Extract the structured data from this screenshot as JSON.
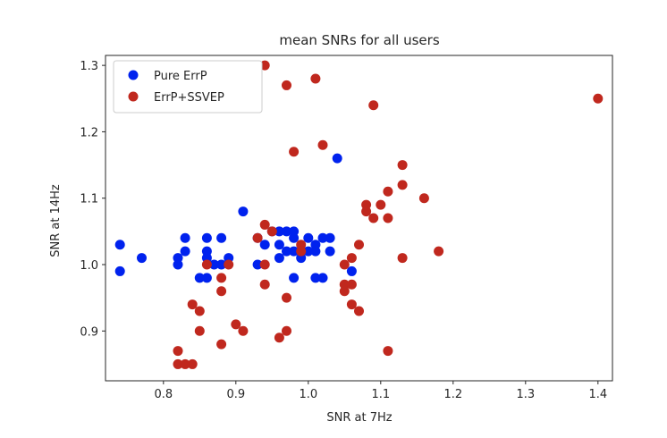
{
  "chart_data": {
    "type": "scatter",
    "title": "mean SNRs for all users",
    "xlabel": "SNR at 7Hz",
    "ylabel": "SNR at 14Hz",
    "xlim": [
      0.72,
      1.42
    ],
    "ylim": [
      0.825,
      1.315
    ],
    "xticks": [
      0.8,
      0.9,
      1.0,
      1.1,
      1.2,
      1.3,
      1.4
    ],
    "xtick_labels": [
      "0.8",
      "0.9",
      "1.0",
      "1.1",
      "1.2",
      "1.3",
      "1.4"
    ],
    "yticks": [
      0.9,
      1.0,
      1.1,
      1.2,
      1.3
    ],
    "ytick_labels": [
      "0.9",
      "1.0",
      "1.1",
      "1.2",
      "1.3"
    ],
    "grid": false,
    "legend_position": "top-left",
    "series": [
      {
        "name": "Pure ErrP",
        "color": "#0022ee",
        "points": [
          [
            0.74,
            1.03
          ],
          [
            0.74,
            0.99
          ],
          [
            0.77,
            1.01
          ],
          [
            0.82,
            1.01
          ],
          [
            0.82,
            1.0
          ],
          [
            0.83,
            1.04
          ],
          [
            0.83,
            1.02
          ],
          [
            0.85,
            0.98
          ],
          [
            0.86,
            1.04
          ],
          [
            0.86,
            1.02
          ],
          [
            0.86,
            1.01
          ],
          [
            0.86,
            0.98
          ],
          [
            0.87,
            1.0
          ],
          [
            0.88,
            1.04
          ],
          [
            0.88,
            1.0
          ],
          [
            0.89,
            1.01
          ],
          [
            0.91,
            1.08
          ],
          [
            0.93,
            1.04
          ],
          [
            0.93,
            1.0
          ],
          [
            0.94,
            1.03
          ],
          [
            0.95,
            1.05
          ],
          [
            0.96,
            1.05
          ],
          [
            0.96,
            1.03
          ],
          [
            0.96,
            1.01
          ],
          [
            0.97,
            1.05
          ],
          [
            0.97,
            1.02
          ],
          [
            0.98,
            1.05
          ],
          [
            0.98,
            1.04
          ],
          [
            0.98,
            1.02
          ],
          [
            0.98,
            0.98
          ],
          [
            0.99,
            1.02
          ],
          [
            0.99,
            1.01
          ],
          [
            1.0,
            1.04
          ],
          [
            1.0,
            1.02
          ],
          [
            1.01,
            1.03
          ],
          [
            1.01,
            1.02
          ],
          [
            1.01,
            0.98
          ],
          [
            1.02,
            1.04
          ],
          [
            1.02,
            0.98
          ],
          [
            1.03,
            1.04
          ],
          [
            1.03,
            1.02
          ],
          [
            1.04,
            1.16
          ],
          [
            1.06,
            0.99
          ]
        ]
      },
      {
        "name": "ErrP+SSVEP",
        "color": "#c0281e",
        "points": [
          [
            0.82,
            0.87
          ],
          [
            0.82,
            0.85
          ],
          [
            0.83,
            0.85
          ],
          [
            0.84,
            0.85
          ],
          [
            0.84,
            0.94
          ],
          [
            0.85,
            0.93
          ],
          [
            0.85,
            0.9
          ],
          [
            0.86,
            1.0
          ],
          [
            0.88,
            0.98
          ],
          [
            0.88,
            0.96
          ],
          [
            0.88,
            0.88
          ],
          [
            0.89,
            1.0
          ],
          [
            0.9,
            0.91
          ],
          [
            0.91,
            0.9
          ],
          [
            0.93,
            1.04
          ],
          [
            0.94,
            1.3
          ],
          [
            0.94,
            1.06
          ],
          [
            0.94,
            1.0
          ],
          [
            0.94,
            0.97
          ],
          [
            0.95,
            1.05
          ],
          [
            0.96,
            0.89
          ],
          [
            0.97,
            1.27
          ],
          [
            0.97,
            0.95
          ],
          [
            0.97,
            0.9
          ],
          [
            0.98,
            1.17
          ],
          [
            0.99,
            1.03
          ],
          [
            0.99,
            1.02
          ],
          [
            1.01,
            1.28
          ],
          [
            1.02,
            1.18
          ],
          [
            1.05,
            1.0
          ],
          [
            1.05,
            0.97
          ],
          [
            1.05,
            0.96
          ],
          [
            1.06,
            1.01
          ],
          [
            1.06,
            0.97
          ],
          [
            1.06,
            0.94
          ],
          [
            1.07,
            1.03
          ],
          [
            1.07,
            0.93
          ],
          [
            1.08,
            1.09
          ],
          [
            1.08,
            1.08
          ],
          [
            1.09,
            1.24
          ],
          [
            1.09,
            1.07
          ],
          [
            1.1,
            1.09
          ],
          [
            1.11,
            1.11
          ],
          [
            1.11,
            1.07
          ],
          [
            1.11,
            0.87
          ],
          [
            1.13,
            1.15
          ],
          [
            1.13,
            1.12
          ],
          [
            1.13,
            1.01
          ],
          [
            1.16,
            1.1
          ],
          [
            1.18,
            1.02
          ],
          [
            1.4,
            1.25
          ]
        ]
      }
    ]
  }
}
